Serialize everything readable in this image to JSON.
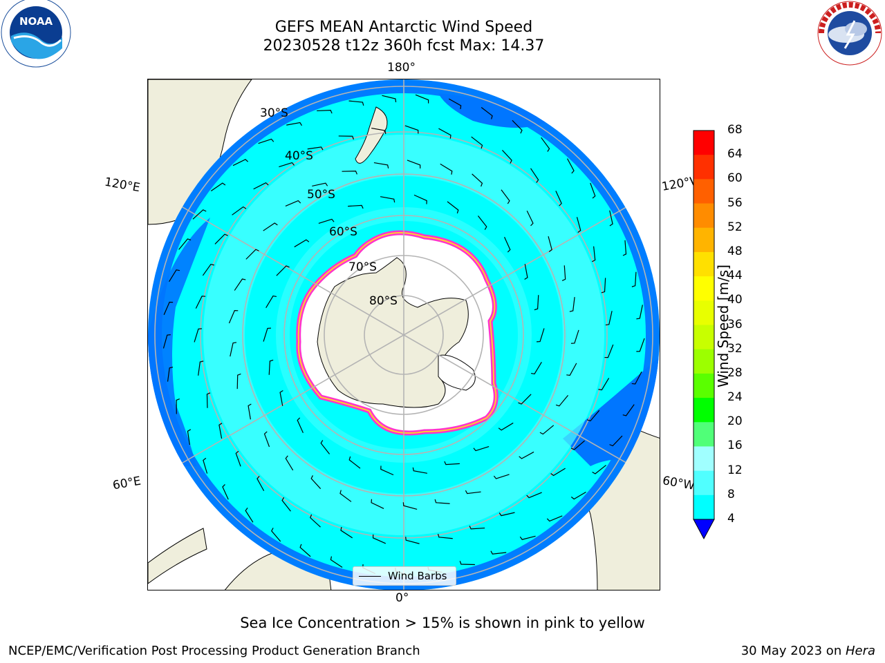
{
  "title": {
    "line1": "GEFS MEAN Antarctic Wind Speed",
    "line2": "20230528 t12z 360h fcst   Max: 14.37"
  },
  "logos": {
    "noaa_text": "NOAA",
    "nws_text": "NATIONAL WEATHER SERVICE"
  },
  "map": {
    "projection": "south polar stereographic",
    "lon_labels": {
      "top": "180°",
      "bottom": "0°",
      "upper_left": "120°E",
      "lower_left": "60°E",
      "upper_right": "120°W",
      "lower_right": "60°W"
    },
    "lat_labels": [
      "30°S",
      "40°S",
      "50°S",
      "60°S",
      "70°S",
      "80°S"
    ],
    "legend_entry": "Wind Barbs",
    "colors": {
      "land": "#efeedc",
      "ice": "#ffffff",
      "wind_4_8": "#0076ff",
      "wind_8_12": "#00ffff",
      "wind_12_16": "#50ffff",
      "ice_edge": "#ff33cc",
      "ice_edge_inner": "#ffcc33",
      "grid": "#b4b4b4"
    }
  },
  "colorbar": {
    "label": "Wind Speed [m/s]",
    "ticks": [
      "68",
      "64",
      "60",
      "56",
      "52",
      "48",
      "44",
      "40",
      "36",
      "32",
      "28",
      "24",
      "20",
      "16",
      "12",
      "8",
      "4"
    ],
    "colors": [
      "#ff0000",
      "#ff3000",
      "#ff6000",
      "#ff8c00",
      "#ffb400",
      "#ffe000",
      "#ffff00",
      "#e8ff00",
      "#c8ff00",
      "#9cff00",
      "#5aff00",
      "#00ff00",
      "#50ff78",
      "#a0ffff",
      "#50ffff",
      "#00ffff",
      "#0076ff"
    ],
    "extend_color": "#0000ff"
  },
  "caption": "Sea Ice Concentration > 15% is shown in pink to yellow",
  "credit_left": "NCEP/EMC/Verification Post Processing Product Generation Branch",
  "credit_right_date": "30 May 2023 on ",
  "credit_right_host": "Hera"
}
